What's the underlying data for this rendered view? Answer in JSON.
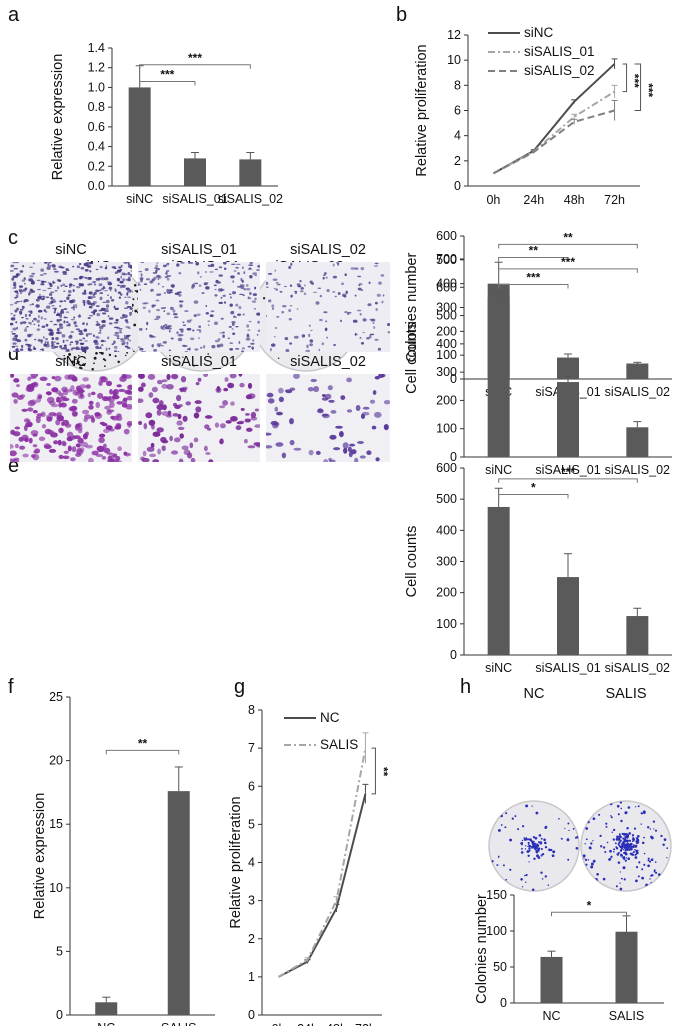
{
  "panel_labels": [
    "a",
    "b",
    "c",
    "d",
    "e",
    "f",
    "g",
    "h"
  ],
  "image_panels": {
    "c": {
      "captions": [
        "siNC",
        "siSALIS_01",
        "siSALIS_02"
      ],
      "colony_density": [
        0.9,
        0.08,
        0.05
      ]
    },
    "d": {
      "captions": [
        "siNC",
        "siSALIS_01",
        "siSALIS_02"
      ],
      "cell_density": [
        1.0,
        0.5,
        0.25
      ]
    },
    "e": {
      "captions": [
        "siNC",
        "siSALIS_01",
        "siSALIS_02"
      ],
      "cell_density": [
        1.0,
        0.5,
        0.3
      ]
    },
    "h": {
      "captions": [
        "NC",
        "SALIS"
      ],
      "colony_density": [
        0.5,
        1.0
      ]
    }
  },
  "chart_data": [
    {
      "id": "a",
      "type": "bar",
      "ylabel": "Relative expression",
      "xlabel": "",
      "categories": [
        "siNC",
        "siSALIS_01",
        "siSALIS_02"
      ],
      "values": [
        1.0,
        0.28,
        0.27
      ],
      "errors": [
        0.22,
        0.06,
        0.07
      ],
      "ylim": [
        0,
        1.4
      ],
      "yticks": [
        "0.0",
        "0.2",
        "0.4",
        "0.6",
        "0.8",
        "1.0",
        "1.2",
        "1.4"
      ],
      "significance": [
        {
          "from": 0,
          "to": 1,
          "label": "***",
          "y": 1.06
        },
        {
          "from": 0,
          "to": 2,
          "label": "***",
          "y": 1.23
        }
      ],
      "bar_color": "#5a5a5a"
    },
    {
      "id": "b",
      "type": "line",
      "ylabel": "Relative proliferation",
      "xlabel": "",
      "x": [
        "0h",
        "24h",
        "48h",
        "72h"
      ],
      "series": [
        {
          "name": "siNC",
          "values": [
            1.0,
            2.8,
            6.7,
            9.7
          ],
          "errors": [
            0,
            0.1,
            0.15,
            0.4
          ],
          "color": "#4d4d4d",
          "dash": ""
        },
        {
          "name": "siSALIS_01",
          "values": [
            1.0,
            2.75,
            5.5,
            7.5
          ],
          "errors": [
            0,
            0.1,
            0.2,
            0.5
          ],
          "color": "#a6a6a6",
          "dash": "7 3 2 3"
        },
        {
          "name": "siSALIS_02",
          "values": [
            1.0,
            2.7,
            5.1,
            6.0
          ],
          "errors": [
            0,
            0.1,
            0.2,
            0.8
          ],
          "color": "#7f7f7f",
          "dash": "7 4"
        }
      ],
      "ylim": [
        0,
        12
      ],
      "yticks": [
        "0",
        "2",
        "4",
        "6",
        "8",
        "10",
        "12"
      ],
      "legend_position": "top-left",
      "significance": [
        "***",
        "***"
      ]
    },
    {
      "id": "c",
      "type": "bar",
      "ylabel": "Colonies number",
      "xlabel": "",
      "categories": [
        "siNC",
        "siSALIS_01",
        "siSALIS_02"
      ],
      "values": [
        400,
        90,
        65
      ],
      "errors": [
        90,
        15,
        5
      ],
      "ylim": [
        0,
        600
      ],
      "yticks": [
        "0",
        "100",
        "200",
        "300",
        "400",
        "500",
        "600"
      ],
      "significance": [
        {
          "from": 0,
          "to": 1,
          "label": "**",
          "y": 510
        },
        {
          "from": 0,
          "to": 2,
          "label": "**",
          "y": 565
        }
      ],
      "bar_color": "#5a5a5a"
    },
    {
      "id": "d",
      "type": "bar",
      "ylabel": "Cell counts",
      "xlabel": "",
      "categories": [
        "siNC",
        "siSALIS_01",
        "siSALIS_02"
      ],
      "values": [
        565,
        265,
        105
      ],
      "errors": [
        15,
        20,
        20
      ],
      "ylim": [
        0,
        700
      ],
      "yticks": [
        "0",
        "100",
        "200",
        "300",
        "400",
        "500",
        "600",
        "700"
      ],
      "significance": [
        {
          "from": 0,
          "to": 1,
          "label": "***",
          "y": 610
        },
        {
          "from": 0,
          "to": 2,
          "label": "***",
          "y": 665
        }
      ],
      "bar_color": "#5a5a5a"
    },
    {
      "id": "e",
      "type": "bar",
      "ylabel": "Cell counts",
      "xlabel": "",
      "categories": [
        "siNC",
        "siSALIS_01",
        "siSALIS_02"
      ],
      "values": [
        475,
        250,
        125
      ],
      "errors": [
        60,
        75,
        25
      ],
      "ylim": [
        0,
        600
      ],
      "yticks": [
        "0",
        "100",
        "200",
        "300",
        "400",
        "500",
        "600"
      ],
      "significance": [
        {
          "from": 0,
          "to": 1,
          "label": "*",
          "y": 515
        },
        {
          "from": 0,
          "to": 2,
          "label": "***",
          "y": 565
        }
      ],
      "bar_color": "#5a5a5a"
    },
    {
      "id": "f",
      "type": "bar",
      "ylabel": "Relative expression",
      "xlabel": "",
      "categories": [
        "NC",
        "SALIS"
      ],
      "values": [
        1.0,
        17.6
      ],
      "errors": [
        0.4,
        1.9
      ],
      "ylim": [
        0,
        25
      ],
      "yticks": [
        "0",
        "5",
        "10",
        "15",
        "20",
        "25"
      ],
      "significance": [
        {
          "from": 0,
          "to": 1,
          "label": "**",
          "y": 20.8
        }
      ],
      "bar_color": "#5a5a5a"
    },
    {
      "id": "g",
      "type": "line",
      "ylabel": "Relative proliferation",
      "xlabel": "",
      "x": [
        "0h",
        "24h",
        "48h",
        "72h"
      ],
      "series": [
        {
          "name": "NC",
          "values": [
            1.0,
            1.4,
            2.8,
            5.8
          ],
          "errors": [
            0,
            0.05,
            0.1,
            0.25
          ],
          "color": "#4d4d4d",
          "dash": ""
        },
        {
          "name": "SALIS",
          "values": [
            1.0,
            1.45,
            3.0,
            7.0
          ],
          "errors": [
            0,
            0.05,
            0.1,
            0.4
          ],
          "color": "#a6a6a6",
          "dash": "7 3 2 3"
        }
      ],
      "ylim": [
        0,
        8
      ],
      "yticks": [
        "0",
        "1",
        "2",
        "3",
        "4",
        "5",
        "6",
        "7",
        "8"
      ],
      "legend_position": "top-left",
      "significance": [
        "**"
      ]
    },
    {
      "id": "h",
      "type": "bar",
      "ylabel": "Colonies number",
      "xlabel": "",
      "categories": [
        "NC",
        "SALIS"
      ],
      "values": [
        64,
        99
      ],
      "errors": [
        8,
        22
      ],
      "ylim": [
        0,
        150
      ],
      "yticks": [
        "0",
        "50",
        "100",
        "150"
      ],
      "significance": [
        {
          "from": 0,
          "to": 1,
          "label": "*",
          "y": 126
        }
      ],
      "bar_color": "#5a5a5a"
    }
  ]
}
